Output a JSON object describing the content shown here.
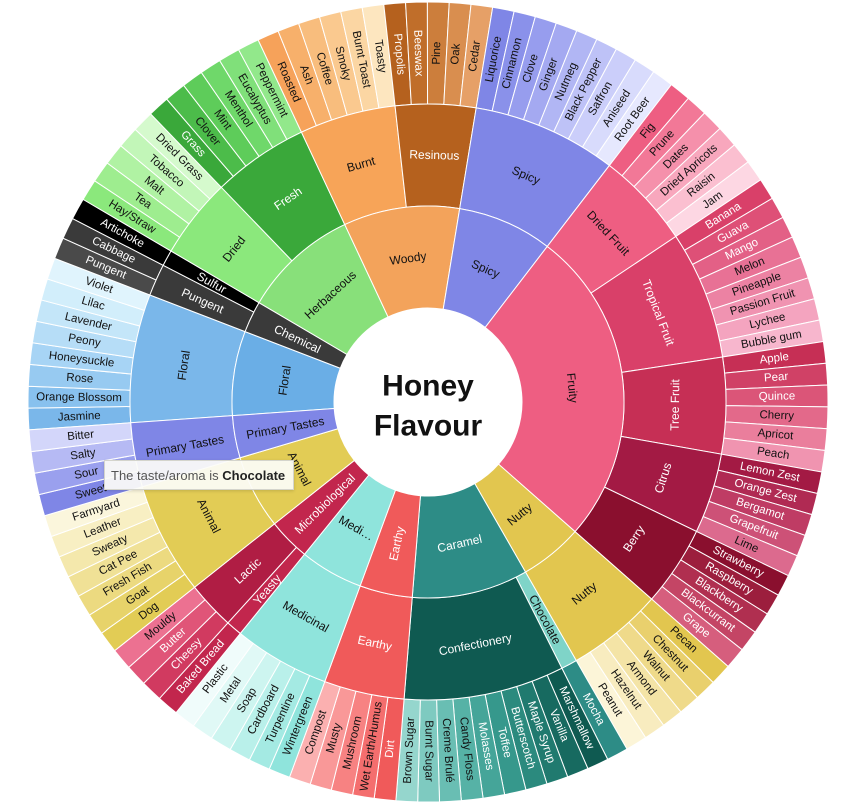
{
  "chart_data": {
    "type": "sunburst",
    "title_lines": [
      "Honey",
      "Flavour"
    ],
    "tooltip": {
      "prefix": "The taste/aroma is ",
      "value": "Chocolate"
    },
    "categories": [
      {
        "name": "Floral",
        "color": "#6aaee6",
        "sub": [
          {
            "name": "Floral",
            "color": "#7ab7ea",
            "leaves": [
              [
                "Jasmine",
                "#7ab7ea"
              ],
              [
                "Orange Blossom",
                "#88c1ee"
              ],
              [
                "Rose",
                "#97caf1"
              ],
              [
                "Honeysuckle",
                "#a7d4f5"
              ],
              [
                "Peony",
                "#b6ddf7"
              ],
              [
                "Lavender",
                "#c4e6f9"
              ],
              [
                "Lilac",
                "#d2eefb"
              ],
              [
                "Violet",
                "#e0f4fd"
              ]
            ]
          }
        ]
      },
      {
        "name": "Chemical",
        "color": "#3a3a3a",
        "sub": [
          {
            "name": "Pungent",
            "color": "#3a3a3a",
            "leaves": [
              [
                "Pungent",
                "#4a4a4a"
              ],
              [
                "Cabbage",
                "#3a3a3a"
              ]
            ]
          },
          {
            "name": "Sulfur",
            "color": "#000000",
            "leaves": [
              [
                "Artichoke",
                "#000000"
              ]
            ]
          }
        ]
      },
      {
        "name": "Herbaceous",
        "color": "#88e07a",
        "sub": [
          {
            "name": "Dried",
            "color": "#8be87c",
            "leaves": [
              [
                "Hay/Straw",
                "#8be87c"
              ],
              [
                "Tea",
                "#9eed8f"
              ],
              [
                "Malt",
                "#b0f2a3"
              ],
              [
                "Tobacco",
                "#c2f6b8"
              ],
              [
                "Dried Grass",
                "#d5facd"
              ]
            ]
          },
          {
            "name": "Fresh",
            "color": "#3aa83a",
            "leaves": [
              [
                "Grass",
                "#3aa83a"
              ],
              [
                "Clover",
                "#4cbc4a"
              ],
              [
                "Mint",
                "#5ecc5a"
              ],
              [
                "Menthol",
                "#6fd86a"
              ],
              [
                "Eucalyptus",
                "#80e07a"
              ],
              [
                "Peppermint",
                "#92e88b"
              ]
            ]
          }
        ]
      },
      {
        "name": "Woody",
        "color": "#f3a35b",
        "sub": [
          {
            "name": "Burnt",
            "color": "#f7a458",
            "leaves": [
              [
                "Roasted",
                "#f6a25a"
              ],
              [
                "Ash",
                "#f7b06b"
              ],
              [
                "Coffee",
                "#f8bd7d"
              ],
              [
                "Smoky",
                "#fac98f"
              ],
              [
                "Burnt Toast",
                "#fbd6a3"
              ],
              [
                "Toasty",
                "#fde6bf"
              ]
            ]
          },
          {
            "name": "Resinous",
            "color": "#b5611e",
            "leaves": [
              [
                "Propolis",
                "#b5611e"
              ],
              [
                "Beeswax",
                "#c06e2a"
              ],
              [
                "Pine",
                "#cc7e3c"
              ],
              [
                "Oak",
                "#d98e4f"
              ],
              [
                "Cedar",
                "#e6a067"
              ]
            ]
          }
        ]
      },
      {
        "name": "Spicy",
        "color": "#7f86e6",
        "sub": [
          {
            "name": "Spicy",
            "color": "#7f86e6",
            "leaves": [
              [
                "Liquorice",
                "#7f86e6"
              ],
              [
                "Cinnamon",
                "#8a91ea"
              ],
              [
                "Clove",
                "#979dee"
              ],
              [
                "Ginger",
                "#a4a9f1"
              ],
              [
                "Nutmeg",
                "#b1b6f4"
              ],
              [
                "Black Pepper",
                "#bec2f7"
              ],
              [
                "Saffron",
                "#cbcefa"
              ],
              [
                "Aniseed",
                "#d8dbfc"
              ],
              [
                "Root Beer",
                "#e6e8fe"
              ]
            ]
          }
        ]
      },
      {
        "name": "Fruity",
        "color": "#ee5e82",
        "sub": [
          {
            "name": "Dried Fruit",
            "color": "#ee5e82",
            "leaves": [
              [
                "Fig",
                "#ee5e82"
              ],
              [
                "Prune",
                "#f27897"
              ],
              [
                "Dates",
                "#f590ab"
              ],
              [
                "Dried Apricots",
                "#f8a7bd"
              ],
              [
                "Raisin",
                "#fbbfd0"
              ],
              [
                "Jam",
                "#fdd7e3"
              ]
            ]
          },
          {
            "name": "Tropical Fruit",
            "color": "#d94069",
            "leaves": [
              [
                "Banana",
                "#d94069"
              ],
              [
                "Guava",
                "#de5077"
              ],
              [
                "Mango",
                "#e36086"
              ],
              [
                "Melon",
                "#e87195"
              ],
              [
                "Pineapple",
                "#ec82a3"
              ],
              [
                "Passion Fruit",
                "#f093b1"
              ],
              [
                "Lychee",
                "#f4a4bf"
              ],
              [
                "Bubble gum",
                "#f7b6cd"
              ]
            ]
          },
          {
            "name": "Tree Fruit",
            "color": "#c62f55",
            "leaves": [
              [
                "Apple",
                "#c62f55"
              ],
              [
                "Pear",
                "#d04166"
              ],
              [
                "Quince",
                "#db5578"
              ],
              [
                "Cherry",
                "#e3698a"
              ],
              [
                "Apricot",
                "#ea7e9c"
              ],
              [
                "Peach",
                "#f094b0"
              ]
            ]
          },
          {
            "name": "Citrus",
            "color": "#a31a44",
            "leaves": [
              [
                "Lemon Zest",
                "#a31a44"
              ],
              [
                "Orange Zest",
                "#b02a53"
              ],
              [
                "Bergamot",
                "#bf3c64"
              ],
              [
                "Grapefruit",
                "#cd5177"
              ],
              [
                "Lime",
                "#dc6a8e"
              ]
            ]
          },
          {
            "name": "Berry",
            "color": "#8a0f2e",
            "leaves": [
              [
                "Strawberry",
                "#8a0f2e"
              ],
              [
                "Raspberry",
                "#9c1e3d"
              ],
              [
                "Blackberry",
                "#b02f50"
              ],
              [
                "Blackcurrant",
                "#c44565"
              ],
              [
                "Grape",
                "#d65e7d"
              ]
            ]
          }
        ]
      },
      {
        "name": "Nutty",
        "color": "#e2c64f",
        "sub": [
          {
            "name": "Nutty",
            "color": "#e2c64f",
            "leaves": [
              [
                "Pecan",
                "#e2c64f"
              ],
              [
                "Chestnut",
                "#e9d06d"
              ],
              [
                "Walnut",
                "#efda8a"
              ],
              [
                "Armond",
                "#f4e4a6"
              ],
              [
                "Hazelnut",
                "#f8ecbf"
              ],
              [
                "Peanut",
                "#fcf5d8"
              ]
            ]
          }
        ]
      },
      {
        "name": "Caramel",
        "color": "#2d8c86",
        "sub": [
          {
            "name": "Chocolate",
            "color": "#7fd4c8",
            "leaves": [
              [
                "Mocha",
                "#2d8c86"
              ]
            ]
          },
          {
            "name": "Confectionery",
            "color": "#0f5a51",
            "leaves": [
              [
                "Marshmallow",
                "#0f5a51"
              ],
              [
                "Vanilla",
                "#176a60"
              ],
              [
                "Maple Syrup",
                "#207a6f"
              ],
              [
                "Butterscotch",
                "#2b8a7e"
              ],
              [
                "Toffee",
                "#36988c"
              ],
              [
                "Molasses",
                "#45a599"
              ],
              [
                "Candy Floss",
                "#56b2a6"
              ],
              [
                "Creme Brulé",
                "#69beb3"
              ],
              [
                "Burnt Sugar",
                "#7ecac0"
              ],
              [
                "Brown Sugar",
                "#95d6cd"
              ]
            ]
          }
        ]
      },
      {
        "name": "Earthy",
        "color": "#f05a5a",
        "sub": [
          {
            "name": "Earthy",
            "color": "#f05a5a",
            "leaves": [
              [
                "Dirt",
                "#f05a5a"
              ],
              [
                "Wet Earth/Humus",
                "#f46e6e"
              ],
              [
                "Mushroom",
                "#f78282"
              ],
              [
                "Musty",
                "#f99898"
              ],
              [
                "Compost",
                "#fbb0b0"
              ]
            ]
          }
        ]
      },
      {
        "name": "Medicinal",
        "color": "#8fe4dc",
        "sub": [
          {
            "name": "Medicinal",
            "color": "#8fe4dc",
            "leaves": [
              [
                "Wintergreen",
                "#8fe4dc"
              ],
              [
                "Turpentine",
                "#a4eae3"
              ],
              [
                "Cardboard",
                "#b9f0ea"
              ],
              [
                "Soap",
                "#cdf5f0"
              ],
              [
                "Metal",
                "#e0f9f6"
              ],
              [
                "Plastic",
                "#f0fcfb"
              ]
            ]
          }
        ]
      },
      {
        "name": "Microbiological",
        "color": "#c2264d",
        "sub": [
          {
            "name": "Yeasty",
            "color": "#c2264d",
            "leaves": [
              [
                "Baked Bread",
                "#c2264d"
              ]
            ]
          },
          {
            "name": "Lactic",
            "color": "#b01d44",
            "leaves": [
              [
                "Cheesy",
                "#d13a60"
              ],
              [
                "Butter",
                "#e05578"
              ],
              [
                "Mouldy",
                "#ec7191"
              ]
            ]
          }
        ]
      },
      {
        "name": "Animal",
        "color": "#e2cc55",
        "sub": [
          {
            "name": "Animal",
            "color": "#e2cc55",
            "leaves": [
              [
                "Dog",
                "#e2cc55"
              ],
              [
                "Goat",
                "#e7d36a"
              ],
              [
                "Fresh Fish",
                "#ecda80"
              ],
              [
                "Cat Pee",
                "#f0e196"
              ],
              [
                "Sweaty",
                "#f4e8ac"
              ],
              [
                "Leather",
                "#f8efc3"
              ],
              [
                "Farmyard",
                "#fbf6dc"
              ]
            ]
          }
        ]
      },
      {
        "name": "Primary Tastes",
        "color": "#7f86e6",
        "sub": [
          {
            "name": "Primary Tastes",
            "color": "#7f86e6",
            "leaves": [
              [
                "Sweet",
                "#7f86e6"
              ],
              [
                "Sour",
                "#9aa0ee"
              ],
              [
                "Salty",
                "#b6baf4"
              ],
              [
                "Bitter",
                "#d3d6fa"
              ]
            ]
          }
        ]
      }
    ]
  }
}
